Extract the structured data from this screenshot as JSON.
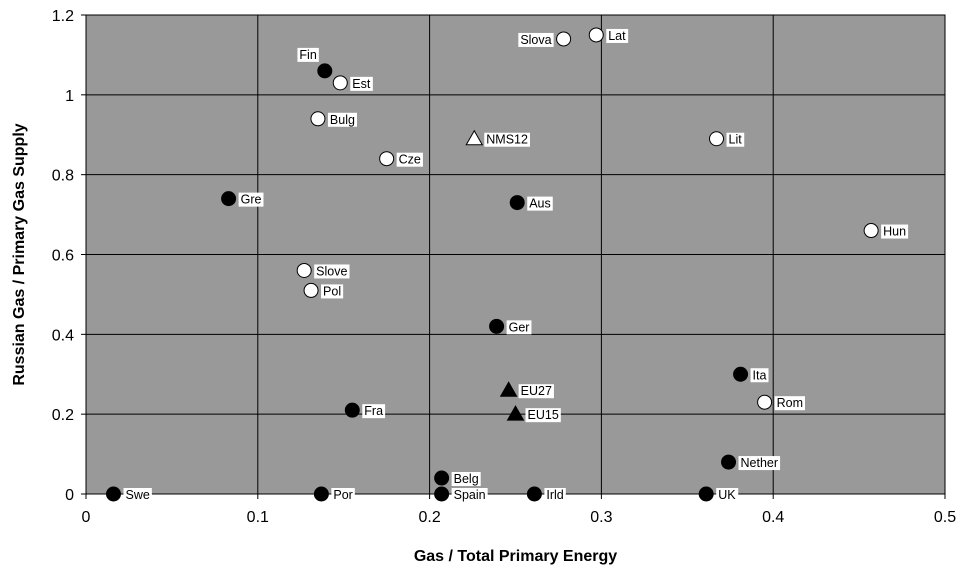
{
  "chart_data": {
    "type": "scatter",
    "title": "",
    "xlabel": "Gas / Total Primary Energy",
    "ylabel": "Russian Gas / Primary Gas Supply",
    "xlim": [
      0,
      0.5
    ],
    "ylim": [
      0,
      1.2
    ],
    "x_ticks": [
      "0",
      "0.1",
      "0.2",
      "0.3",
      "0.4",
      "0.5"
    ],
    "y_ticks": [
      "0",
      "0.2",
      "0.4",
      "0.6",
      "0.8",
      "1",
      "1.2"
    ],
    "grid": true,
    "plot_background": "#999999",
    "points": [
      {
        "label": "Fin",
        "x": 0.139,
        "y": 1.06,
        "marker": "filled-circle",
        "label_side": "above-left"
      },
      {
        "label": "Est",
        "x": 0.148,
        "y": 1.03,
        "marker": "open-circle",
        "label_side": "right"
      },
      {
        "label": "Bulg",
        "x": 0.135,
        "y": 0.94,
        "marker": "open-circle",
        "label_side": "right"
      },
      {
        "label": "Cze",
        "x": 0.175,
        "y": 0.84,
        "marker": "open-circle",
        "label_side": "right"
      },
      {
        "label": "Gre",
        "x": 0.083,
        "y": 0.74,
        "marker": "filled-circle",
        "label_side": "right"
      },
      {
        "label": "Slove",
        "x": 0.127,
        "y": 0.56,
        "marker": "open-circle",
        "label_side": "right"
      },
      {
        "label": "Pol",
        "x": 0.131,
        "y": 0.51,
        "marker": "open-circle",
        "label_side": "right"
      },
      {
        "label": "Fra",
        "x": 0.155,
        "y": 0.21,
        "marker": "filled-circle",
        "label_side": "right"
      },
      {
        "label": "Swe",
        "x": 0.016,
        "y": 0.0,
        "marker": "filled-circle",
        "label_side": "right"
      },
      {
        "label": "Por",
        "x": 0.137,
        "y": 0.0,
        "marker": "filled-circle",
        "label_side": "right"
      },
      {
        "label": "Slova",
        "x": 0.278,
        "y": 1.14,
        "marker": "open-circle",
        "label_side": "left"
      },
      {
        "label": "Lat",
        "x": 0.297,
        "y": 1.15,
        "marker": "open-circle",
        "label_side": "right"
      },
      {
        "label": "NMS12",
        "x": 0.226,
        "y": 0.89,
        "marker": "open-triangle",
        "label_side": "right"
      },
      {
        "label": "Aus",
        "x": 0.251,
        "y": 0.73,
        "marker": "filled-circle",
        "label_side": "right"
      },
      {
        "label": "Ger",
        "x": 0.239,
        "y": 0.42,
        "marker": "filled-circle",
        "label_side": "right"
      },
      {
        "label": "EU27",
        "x": 0.246,
        "y": 0.26,
        "marker": "filled-triangle",
        "label_side": "right"
      },
      {
        "label": "EU15",
        "x": 0.25,
        "y": 0.2,
        "marker": "filled-triangle",
        "label_side": "right"
      },
      {
        "label": "Belg",
        "x": 0.207,
        "y": 0.04,
        "marker": "filled-circle",
        "label_side": "right"
      },
      {
        "label": "Spain",
        "x": 0.207,
        "y": 0.0,
        "marker": "filled-circle",
        "label_side": "right"
      },
      {
        "label": "Irld",
        "x": 0.261,
        "y": 0.0,
        "marker": "filled-circle",
        "label_side": "right"
      },
      {
        "label": "Lit",
        "x": 0.367,
        "y": 0.89,
        "marker": "open-circle",
        "label_side": "right"
      },
      {
        "label": "Hun",
        "x": 0.457,
        "y": 0.66,
        "marker": "open-circle",
        "label_side": "right"
      },
      {
        "label": "Ita",
        "x": 0.381,
        "y": 0.3,
        "marker": "filled-circle",
        "label_side": "right"
      },
      {
        "label": "Rom",
        "x": 0.395,
        "y": 0.23,
        "marker": "open-circle",
        "label_side": "right"
      },
      {
        "label": "Nether",
        "x": 0.374,
        "y": 0.08,
        "marker": "filled-circle",
        "label_side": "right"
      },
      {
        "label": "UK",
        "x": 0.361,
        "y": 0.0,
        "marker": "filled-circle",
        "label_side": "right"
      }
    ]
  }
}
